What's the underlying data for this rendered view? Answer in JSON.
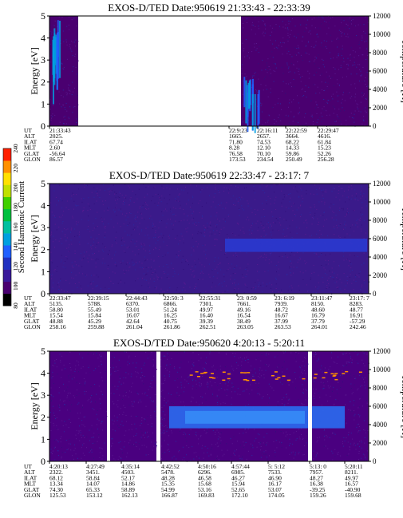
{
  "colorbar": {
    "label": "Second Harmonic Current",
    "ticks": [
      "80",
      "100",
      "120",
      "140",
      "160",
      "180",
      "200",
      "220",
      "240"
    ],
    "colors": [
      "#000000",
      "#4a0070",
      "#3a1a9a",
      "#2030c0",
      "#2060ff",
      "#00a0e0",
      "#00c0a0",
      "#00c040",
      "#40d000",
      "#c0e000",
      "#ffe000",
      "#ff9000",
      "#ff2000"
    ]
  },
  "chart_data": [
    {
      "type": "heatmap",
      "title": "EXOS-D/TED   Date:950619  21:33:43 - 22:33:39",
      "ylabel": "Energy [eV]",
      "ylabel_right": "Temperature [K]",
      "ylim": [
        0,
        5
      ],
      "yticks": [
        "0",
        "1",
        "2",
        "3",
        "4",
        "5"
      ],
      "ylim_right": [
        0,
        12000
      ],
      "yticks_right": [
        "0",
        "2000",
        "4000",
        "6000",
        "8000",
        "10000",
        "12000"
      ],
      "time_range": [
        "21:33:43",
        "22:33:39"
      ],
      "data_gap": [
        "21:40:00",
        "22:9:23"
      ],
      "background_color": "#4a0070",
      "dominant_band": null,
      "orbit_table": {
        "rows": [
          "UT",
          "ALT",
          "ILAT",
          "MLT",
          "GLAT",
          "GLON"
        ],
        "columns": [
          [
            "21:33:43",
            "2025.",
            "67.74",
            "2.60",
            "-56.64",
            "86.57"
          ],
          [
            "22:9:23",
            "1665.",
            "71.80",
            "8.28",
            "76.58",
            "173.53"
          ],
          [
            "22:16:11",
            "2657.",
            "74.53",
            "12.10",
            "70.10",
            "234.54"
          ],
          [
            "22:22:59",
            "3664.",
            "68.22",
            "14.33",
            "59.86",
            "250.49"
          ],
          [
            "22:29:47",
            "4616.",
            "61.84",
            "15.23",
            "52.26",
            "256.28"
          ]
        ]
      }
    },
    {
      "type": "heatmap",
      "title": "EXOS-D/TED   Date:950619  22:33:47 - 23:17: 7",
      "ylabel": "Energy [eV]",
      "ylabel_right": "Temperature [K]",
      "ylim": [
        0,
        5
      ],
      "yticks": [
        "0",
        "1",
        "2",
        "3",
        "4",
        "5"
      ],
      "ylim_right": [
        0,
        12000
      ],
      "yticks_right": [
        "0",
        "2000",
        "4000",
        "6000",
        "8000",
        "10000",
        "12000"
      ],
      "time_range": [
        "22:33:47",
        "23:17: 7"
      ],
      "data_gap": null,
      "background_color": "#3a1a8a",
      "dominant_band": {
        "energy_center_eV": 2.2,
        "energy_halfwidth_eV": 0.3,
        "color": "#2a3ad0"
      },
      "orbit_table": {
        "rows": [
          "UT",
          "ALT",
          "ILAT",
          "MLT",
          "GLAT",
          "GLON"
        ],
        "columns": [
          [
            "22:33:47",
            "5135.",
            "58.80",
            "15.54",
            "48.88",
            "258.16"
          ],
          [
            "22:39:15",
            "5788.",
            "55.49",
            "15.84",
            "45.29",
            "259.88"
          ],
          [
            "22:44:43",
            "6370.",
            "53.01",
            "16.07",
            "42.64",
            "261.04"
          ],
          [
            "22:50: 3",
            "6866.",
            "51.24",
            "16.25",
            "40.75",
            "261.86"
          ],
          [
            "22:55:31",
            "7301.",
            "49.97",
            "16.40",
            "39.39",
            "262.51"
          ],
          [
            "23: 0:59",
            "7661.",
            "49.16",
            "16.54",
            "38.49",
            "263.05"
          ],
          [
            "23: 6:19",
            "7939.",
            "48.72",
            "16.67",
            "37.99",
            "263.53"
          ],
          [
            "23:11:47",
            "8150.",
            "48.60",
            "16.79",
            "37.79",
            "264.01"
          ],
          [
            "23:17: 7",
            "8283.",
            "48.77",
            "16.91",
            "-57.29",
            "242.46"
          ]
        ]
      }
    },
    {
      "type": "heatmap",
      "title": "EXOS-D/TED   Date:950620  4:20:13 - 5:20:11",
      "ylabel": "Energy [eV]",
      "ylabel_right": "Temperature [K]",
      "ylim": [
        0,
        5
      ],
      "yticks": [
        "0",
        "1",
        "2",
        "3",
        "4",
        "5"
      ],
      "ylim_right": [
        0,
        12000
      ],
      "yticks_right": [
        "0",
        "2000",
        "4000",
        "6000",
        "8000",
        "10000",
        "12000"
      ],
      "time_range": [
        "4:20:13",
        "5:20:11"
      ],
      "data_gap": null,
      "background_color": "#4a0080",
      "dominant_band": {
        "energy_center_eV": 2.0,
        "energy_halfwidth_eV": 0.5,
        "color": "#2a6cf0"
      },
      "orbit_table": {
        "rows": [
          "UT",
          "ALT",
          "ILAT",
          "MLT",
          "GLAT",
          "GLON"
        ],
        "columns": [
          [
            "4:20:13",
            "2322.",
            "68.12",
            "13.34",
            "74.30",
            "125.53"
          ],
          [
            "4:27:49",
            "3451.",
            "58.84",
            "14.07",
            "65.33",
            "153.12"
          ],
          [
            "4:35:14",
            "4503.",
            "52.17",
            "14.86",
            "58.89",
            "162.13"
          ],
          [
            "4:42:52",
            "5478.",
            "48.28",
            "15.35",
            "54.99",
            "166.87"
          ],
          [
            "4:50:16",
            "6296.",
            "46.58",
            "15.68",
            "53.16",
            "169.83"
          ],
          [
            "4:57:44",
            "6985.",
            "46.27",
            "15.94",
            "52.65",
            "172.10"
          ],
          [
            "5: 5:12",
            "7533.",
            "46.90",
            "16.17",
            "53.07",
            "174.05"
          ],
          [
            "5:13: 0",
            "7957.",
            "48.27",
            "16.38",
            "-39.25",
            "159.26"
          ],
          [
            "5:20:11",
            "8211.",
            "49.97",
            "16.57",
            "-40.90",
            "159.68"
          ]
        ]
      }
    }
  ]
}
